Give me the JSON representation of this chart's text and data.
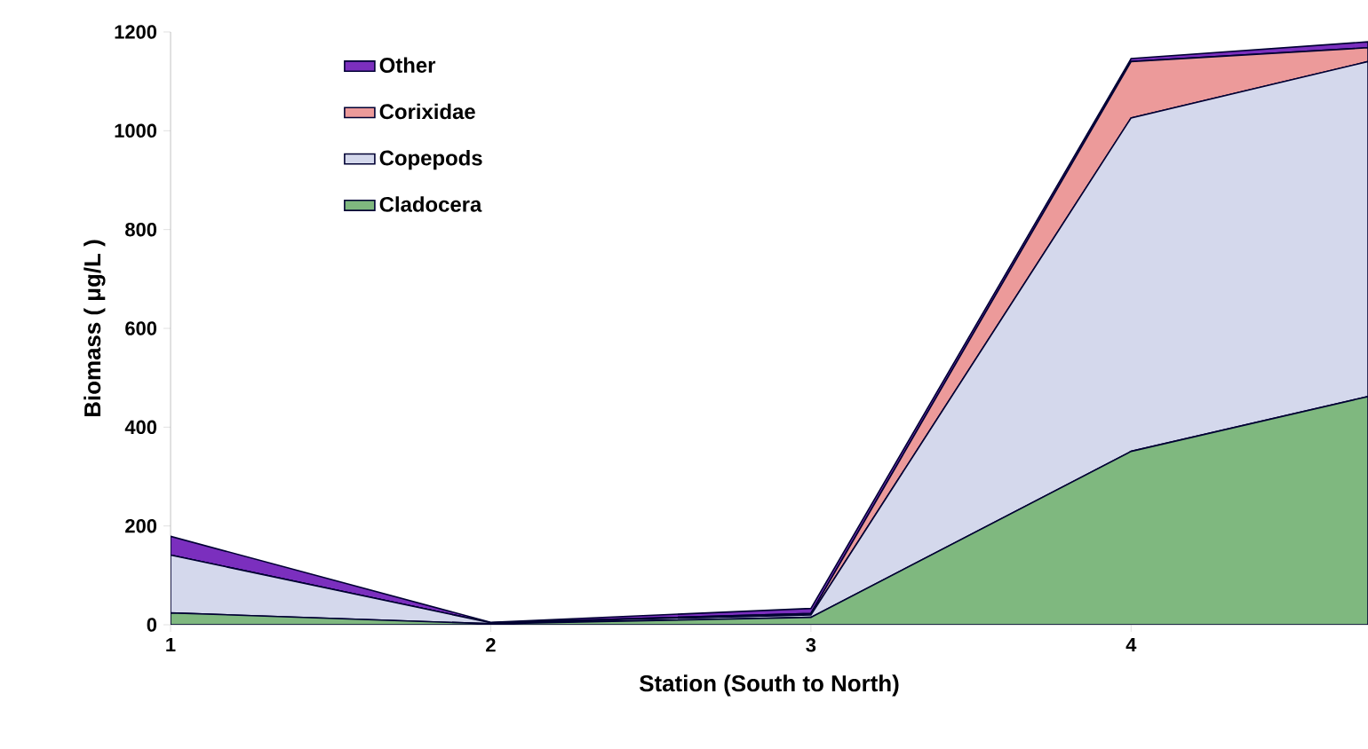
{
  "chart_data": {
    "type": "area",
    "stacked": true,
    "xlabel": "Station (South to North)",
    "ylabel": "Biomass ( μg/L )",
    "x": [
      1,
      2,
      3,
      4,
      4.74
    ],
    "xlim": [
      1,
      4.74
    ],
    "xticks": [
      1,
      2,
      3,
      4
    ],
    "ylim": [
      0,
      1200
    ],
    "yticks": [
      0,
      200,
      400,
      600,
      800,
      1000,
      1200
    ],
    "grid": false,
    "legend": "top left",
    "series": [
      {
        "name": "Cladocera",
        "color": "#7fb87f",
        "values": [
          24,
          2,
          15,
          351,
          462
        ]
      },
      {
        "name": "Copepods",
        "color": "#d4d8ec",
        "values": [
          117,
          2,
          5,
          675,
          678
        ]
      },
      {
        "name": "Corixidae",
        "color": "#ec9a9a",
        "values": [
          0,
          0,
          3,
          114,
          28
        ]
      },
      {
        "name": "Other",
        "color": "#7b2fbe",
        "values": [
          38,
          1,
          10,
          6,
          12
        ]
      }
    ]
  }
}
